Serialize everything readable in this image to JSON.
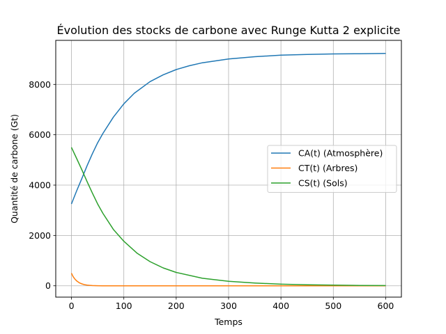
{
  "chart_data": {
    "type": "line",
    "title": "Évolution des stocks de carbone avec Runge Kutta 2 explicite",
    "xlabel": "Temps",
    "ylabel": "Quantité de carbone (Gt)",
    "xlim": [
      -30,
      630
    ],
    "ylim": [
      -450,
      9750
    ],
    "xticks": [
      0,
      100,
      200,
      300,
      400,
      500,
      600
    ],
    "yticks": [
      0,
      2000,
      4000,
      6000,
      8000
    ],
    "grid": true,
    "legend_position": "center-right",
    "series": [
      {
        "name": "CA(t) (Atmosphère)",
        "color": "#1f77b4",
        "x": [
          0,
          10,
          20,
          30,
          40,
          50,
          60,
          80,
          100,
          120,
          150,
          175,
          200,
          225,
          250,
          300,
          350,
          400,
          450,
          500,
          550,
          600
        ],
        "y": [
          3250,
          3780,
          4270,
          4780,
          5250,
          5680,
          6050,
          6700,
          7230,
          7650,
          8110,
          8380,
          8590,
          8740,
          8860,
          9010,
          9100,
          9160,
          9190,
          9210,
          9220,
          9230
        ]
      },
      {
        "name": "CT(t) (Arbres)",
        "color": "#ff7f0e",
        "x": [
          0,
          3,
          6,
          10,
          15,
          20,
          25,
          30,
          40,
          50,
          60,
          80,
          100,
          200,
          300,
          400,
          500,
          600
        ],
        "y": [
          500,
          370,
          280,
          190,
          120,
          75,
          45,
          25,
          10,
          3,
          0,
          0,
          0,
          0,
          0,
          0,
          0,
          0
        ]
      },
      {
        "name": "CS(t) (Sols)",
        "color": "#2ca02c",
        "x": [
          0,
          10,
          20,
          30,
          40,
          50,
          60,
          80,
          100,
          125,
          150,
          175,
          200,
          250,
          300,
          350,
          400,
          450,
          500,
          550,
          600
        ],
        "y": [
          5500,
          5050,
          4600,
          4130,
          3680,
          3250,
          2880,
          2240,
          1770,
          1300,
          960,
          710,
          530,
          300,
          180,
          110,
          65,
          40,
          25,
          15,
          10
        ]
      }
    ]
  }
}
